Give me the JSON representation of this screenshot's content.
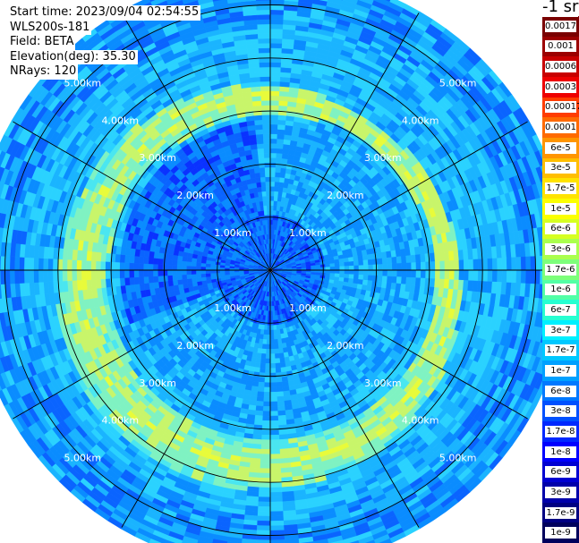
{
  "header": {
    "start_time": "Start time: 2023/09/04 02:54:55",
    "instrument": "WLS200s-181",
    "field": "Field: BETA",
    "elevation": "Elevation(deg): 35.30",
    "nrays": "NRays: 120"
  },
  "colorbar": {
    "title": "-1 sr",
    "labels": [
      "0.0017",
      "0.001",
      "0.0006",
      "0.0003",
      "0.00017",
      "0.0001",
      "6e-5",
      "3e-5",
      "1.7e-5",
      "1e-5",
      "6e-6",
      "3e-6",
      "1.7e-6",
      "1e-6",
      "6e-7",
      "3e-7",
      "1.7e-7",
      "1e-7",
      "6e-8",
      "3e-8",
      "1.7e-8",
      "1e-8",
      "6e-9",
      "3e-9",
      "1.7e-9",
      "1e-9"
    ],
    "colors": [
      "#7a0000",
      "#9c0000",
      "#c80000",
      "#ee0000",
      "#ff3c00",
      "#ff6a00",
      "#ff9500",
      "#ffbe00",
      "#ffe300",
      "#fbff00",
      "#d6ff21",
      "#aaff4d",
      "#7dff7a",
      "#52ffa6",
      "#26ffd1",
      "#00f0ff",
      "#00c8ff",
      "#00a0ff",
      "#0078ff",
      "#0050ff",
      "#0028ff",
      "#0000ff",
      "#0000d2",
      "#0000aa",
      "#000082",
      "#00005c"
    ]
  },
  "chart_data": {
    "type": "heatmap",
    "projection": "polar PPI",
    "field": "BETA",
    "units": "sr-1",
    "range_rings_km": [
      1,
      2,
      3,
      4,
      5
    ],
    "ring_labels": {
      "r1": "1.00km",
      "r2": "2.00km",
      "r3": "3.00km",
      "r4": "4.00km",
      "r5": "5.00km"
    },
    "max_range_km": 5.6,
    "azimuth_spokes_deg": [
      0,
      30,
      60,
      90,
      120,
      150,
      180,
      210,
      240,
      270,
      300,
      330
    ],
    "grid": true,
    "nrays": 120,
    "elevation_deg": 35.3
  }
}
